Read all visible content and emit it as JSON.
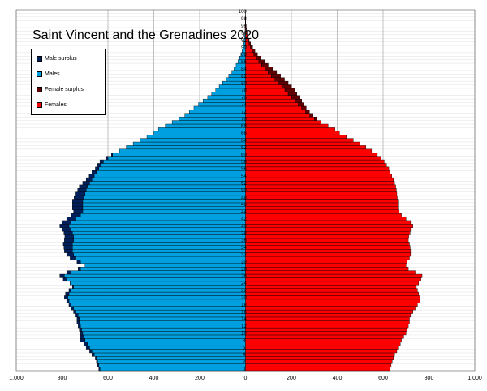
{
  "chart_data": {
    "type": "bar",
    "title": "Saint Vincent and the Grenadines 2020",
    "orientation": "horizontal-pyramid",
    "xlim": [
      -1000,
      1000
    ],
    "x_ticks": [
      {
        "value": -1000,
        "label": "1,000"
      },
      {
        "value": -800,
        "label": "800"
      },
      {
        "value": -600,
        "label": "600"
      },
      {
        "value": -400,
        "label": "400"
      },
      {
        "value": -200,
        "label": "200"
      },
      {
        "value": 0,
        "label": "0"
      },
      {
        "value": 200,
        "label": "200"
      },
      {
        "value": 400,
        "label": "400"
      },
      {
        "value": 600,
        "label": "600"
      },
      {
        "value": 800,
        "label": "800"
      },
      {
        "value": 1000,
        "label": "1,000"
      }
    ],
    "age_labels_even": [
      "0",
      "2",
      "4",
      "6",
      "8",
      "10",
      "12",
      "14",
      "16",
      "18",
      "20",
      "22",
      "24",
      "26",
      "28",
      "30",
      "32",
      "34",
      "36",
      "38",
      "40",
      "42",
      "44",
      "46",
      "48",
      "50",
      "52",
      "54",
      "56",
      "58",
      "60",
      "62",
      "64",
      "66",
      "68",
      "70",
      "72",
      "74",
      "76",
      "78",
      "80",
      "82",
      "84",
      "86",
      "88",
      "90",
      "92",
      "94",
      "96",
      "98",
      "100+"
    ],
    "ages": [
      0,
      1,
      2,
      3,
      4,
      5,
      6,
      7,
      8,
      9,
      10,
      11,
      12,
      13,
      14,
      15,
      16,
      17,
      18,
      19,
      20,
      21,
      22,
      23,
      24,
      25,
      26,
      27,
      28,
      29,
      30,
      31,
      32,
      33,
      34,
      35,
      36,
      37,
      38,
      39,
      40,
      41,
      42,
      43,
      44,
      45,
      46,
      47,
      48,
      49,
      50,
      51,
      52,
      53,
      54,
      55,
      56,
      57,
      58,
      59,
      60,
      61,
      62,
      63,
      64,
      65,
      66,
      67,
      68,
      69,
      70,
      71,
      72,
      73,
      74,
      75,
      76,
      77,
      78,
      79,
      80,
      81,
      82,
      83,
      84,
      85,
      86,
      87,
      88,
      89,
      90,
      91,
      92,
      93,
      94,
      95,
      96,
      97,
      98,
      99,
      100
    ],
    "series": [
      {
        "name": "Males",
        "color": "#00a0e0",
        "values": [
          635,
          640,
          645,
          650,
          660,
          670,
          680,
          690,
          700,
          705,
          710,
          715,
          720,
          725,
          725,
          730,
          740,
          750,
          760,
          770,
          775,
          770,
          760,
          750,
          760,
          780,
          790,
          760,
          720,
          700,
          720,
          740,
          750,
          755,
          755,
          755,
          750,
          750,
          755,
          760,
          770,
          760,
          740,
          720,
          710,
          710,
          710,
          710,
          705,
          700,
          695,
          690,
          680,
          670,
          660,
          650,
          640,
          630,
          620,
          600,
          580,
          550,
          520,
          490,
          460,
          430,
          400,
          380,
          350,
          320,
          290,
          265,
          245,
          225,
          205,
          185,
          165,
          148,
          130,
          115,
          100,
          86,
          73,
          60,
          50,
          41,
          33,
          26,
          20,
          15,
          11,
          8,
          6,
          4,
          3,
          2,
          1,
          1,
          1,
          0,
          0
        ]
      },
      {
        "name": "Females",
        "color": "#ff0000",
        "values": [
          630,
          635,
          640,
          645,
          650,
          660,
          665,
          675,
          680,
          690,
          700,
          705,
          710,
          715,
          715,
          720,
          730,
          740,
          750,
          760,
          760,
          755,
          750,
          745,
          755,
          765,
          770,
          740,
          710,
          700,
          705,
          715,
          720,
          720,
          718,
          715,
          710,
          712,
          718,
          720,
          730,
          720,
          700,
          680,
          670,
          665,
          665,
          665,
          662,
          660,
          658,
          655,
          650,
          645,
          638,
          630,
          625,
          615,
          605,
          590,
          575,
          550,
          525,
          500,
          470,
          440,
          410,
          390,
          360,
          330,
          300,
          280,
          262,
          245,
          230,
          215,
          200,
          186,
          172,
          158,
          143,
          128,
          113,
          98,
          84,
          70,
          58,
          46,
          36,
          28,
          21,
          15,
          11,
          8,
          5,
          3,
          2,
          1,
          1,
          0,
          0
        ]
      },
      {
        "name": "Male surplus",
        "color": "#00205c",
        "values": [
          5,
          5,
          5,
          5,
          10,
          10,
          15,
          15,
          20,
          15,
          10,
          10,
          10,
          10,
          10,
          10,
          10,
          10,
          10,
          10,
          15,
          15,
          10,
          5,
          5,
          15,
          20,
          20,
          10,
          0,
          15,
          25,
          30,
          35,
          37,
          40,
          40,
          38,
          37,
          40,
          40,
          40,
          40,
          40,
          40,
          45,
          45,
          45,
          43,
          40,
          37,
          35,
          30,
          25,
          22,
          20,
          15,
          15,
          15,
          10,
          5,
          0,
          0,
          0,
          0,
          0,
          0,
          0,
          0,
          0,
          0,
          0,
          0,
          0,
          0,
          0,
          0,
          0,
          0,
          0,
          0,
          0,
          0,
          0,
          0,
          0,
          0,
          0,
          0,
          0,
          0,
          0,
          0,
          0,
          0,
          0,
          0,
          0,
          0,
          0,
          0
        ]
      },
      {
        "name": "Female surplus",
        "color": "#600000",
        "values": [
          0,
          0,
          0,
          0,
          0,
          0,
          0,
          0,
          0,
          0,
          0,
          0,
          0,
          0,
          0,
          0,
          0,
          0,
          0,
          0,
          0,
          0,
          0,
          0,
          0,
          0,
          0,
          0,
          0,
          0,
          0,
          0,
          0,
          0,
          0,
          0,
          0,
          0,
          0,
          0,
          0,
          0,
          0,
          0,
          0,
          0,
          0,
          0,
          0,
          0,
          0,
          0,
          0,
          0,
          0,
          0,
          0,
          0,
          0,
          0,
          0,
          0,
          0,
          0,
          0,
          0,
          0,
          0,
          0,
          0,
          10,
          15,
          17,
          20,
          25,
          30,
          35,
          38,
          42,
          43,
          43,
          42,
          40,
          38,
          34,
          29,
          25,
          20,
          16,
          13,
          10,
          7,
          5,
          4,
          2,
          1,
          1,
          0,
          0,
          0,
          0
        ]
      }
    ],
    "legend": {
      "placement": "top-left",
      "items": [
        {
          "label": "Male surplus",
          "color": "#00205c"
        },
        {
          "label": "Males",
          "color": "#00a0e0"
        },
        {
          "label": "Female surplus",
          "color": "#600000"
        },
        {
          "label": "Females",
          "color": "#ff0000"
        }
      ]
    },
    "grid": true
  }
}
